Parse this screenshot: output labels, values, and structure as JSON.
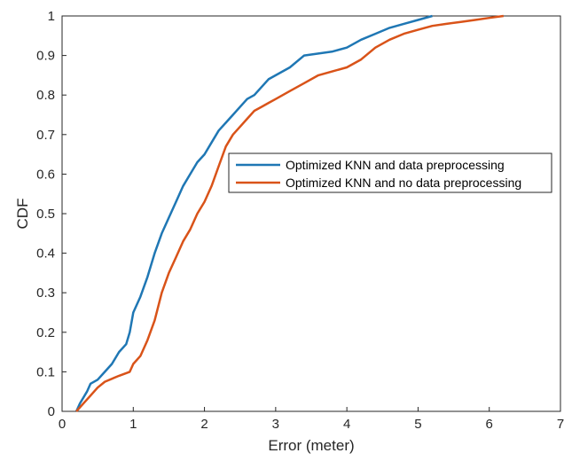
{
  "chart_data": {
    "type": "line",
    "title": "",
    "xlabel": "Error (meter)",
    "ylabel": "CDF",
    "xlim": [
      0,
      7
    ],
    "ylim": [
      0,
      1
    ],
    "xticks": [
      "0",
      "1",
      "2",
      "3",
      "4",
      "5",
      "6",
      "7"
    ],
    "yticks": [
      "0",
      "0.1",
      "0.2",
      "0.3",
      "0.4",
      "0.5",
      "0.6",
      "0.7",
      "0.8",
      "0.9",
      "1"
    ],
    "grid": false,
    "legend_position": "upper-right",
    "series": [
      {
        "name": "Optimized KNN and data preprocessing",
        "color": "#1f77b4",
        "points": [
          [
            0.2,
            0.0
          ],
          [
            0.25,
            0.02
          ],
          [
            0.35,
            0.05
          ],
          [
            0.4,
            0.07
          ],
          [
            0.5,
            0.08
          ],
          [
            0.6,
            0.1
          ],
          [
            0.7,
            0.12
          ],
          [
            0.8,
            0.15
          ],
          [
            0.9,
            0.17
          ],
          [
            0.95,
            0.2
          ],
          [
            1.0,
            0.25
          ],
          [
            1.1,
            0.29
          ],
          [
            1.2,
            0.34
          ],
          [
            1.3,
            0.4
          ],
          [
            1.4,
            0.45
          ],
          [
            1.5,
            0.49
          ],
          [
            1.6,
            0.53
          ],
          [
            1.7,
            0.57
          ],
          [
            1.8,
            0.6
          ],
          [
            1.9,
            0.63
          ],
          [
            2.0,
            0.65
          ],
          [
            2.1,
            0.68
          ],
          [
            2.2,
            0.71
          ],
          [
            2.3,
            0.73
          ],
          [
            2.4,
            0.75
          ],
          [
            2.5,
            0.77
          ],
          [
            2.6,
            0.79
          ],
          [
            2.7,
            0.8
          ],
          [
            2.8,
            0.82
          ],
          [
            2.9,
            0.84
          ],
          [
            3.0,
            0.85
          ],
          [
            3.2,
            0.87
          ],
          [
            3.4,
            0.9
          ],
          [
            3.6,
            0.905
          ],
          [
            3.8,
            0.91
          ],
          [
            4.0,
            0.92
          ],
          [
            4.2,
            0.94
          ],
          [
            4.4,
            0.955
          ],
          [
            4.6,
            0.97
          ],
          [
            4.8,
            0.98
          ],
          [
            5.0,
            0.99
          ],
          [
            5.2,
            1.0
          ]
        ]
      },
      {
        "name": "Optimized KNN and no data preprocessing",
        "color": "#d95319",
        "points": [
          [
            0.2,
            0.0
          ],
          [
            0.3,
            0.02
          ],
          [
            0.4,
            0.04
          ],
          [
            0.5,
            0.06
          ],
          [
            0.6,
            0.075
          ],
          [
            0.8,
            0.09
          ],
          [
            0.95,
            0.1
          ],
          [
            1.0,
            0.12
          ],
          [
            1.1,
            0.14
          ],
          [
            1.2,
            0.18
          ],
          [
            1.3,
            0.23
          ],
          [
            1.4,
            0.3
          ],
          [
            1.5,
            0.35
          ],
          [
            1.6,
            0.39
          ],
          [
            1.7,
            0.43
          ],
          [
            1.8,
            0.46
          ],
          [
            1.9,
            0.5
          ],
          [
            2.0,
            0.53
          ],
          [
            2.1,
            0.57
          ],
          [
            2.2,
            0.62
          ],
          [
            2.3,
            0.67
          ],
          [
            2.4,
            0.7
          ],
          [
            2.5,
            0.72
          ],
          [
            2.6,
            0.74
          ],
          [
            2.7,
            0.76
          ],
          [
            2.8,
            0.77
          ],
          [
            2.9,
            0.78
          ],
          [
            3.0,
            0.79
          ],
          [
            3.2,
            0.81
          ],
          [
            3.4,
            0.83
          ],
          [
            3.6,
            0.85
          ],
          [
            3.8,
            0.86
          ],
          [
            4.0,
            0.87
          ],
          [
            4.2,
            0.89
          ],
          [
            4.4,
            0.92
          ],
          [
            4.6,
            0.94
          ],
          [
            4.8,
            0.955
          ],
          [
            5.0,
            0.965
          ],
          [
            5.2,
            0.975
          ],
          [
            5.4,
            0.98
          ],
          [
            5.6,
            0.985
          ],
          [
            5.8,
            0.99
          ],
          [
            6.0,
            0.995
          ],
          [
            6.2,
            1.0
          ]
        ]
      }
    ]
  }
}
